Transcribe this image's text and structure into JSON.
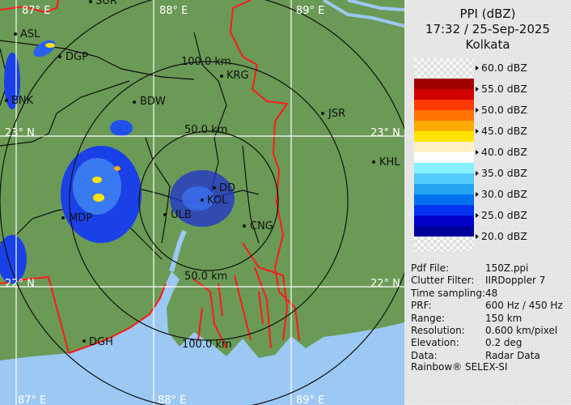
{
  "panel": {
    "title": "PPI (dBZ)",
    "datetime": "17:32 / 25-Sep-2025",
    "location": "Kolkata",
    "legend": [
      {
        "label": "60.0 dBZ"
      },
      {
        "label": "55.0 dBZ"
      },
      {
        "label": "50.0 dBZ"
      },
      {
        "label": "45.0 dBZ"
      },
      {
        "label": "40.0 dBZ"
      },
      {
        "label": "35.0 dBZ"
      },
      {
        "label": "30.0 dBZ"
      },
      {
        "label": "25.0 dBZ"
      },
      {
        "label": "20.0 dBZ"
      }
    ],
    "legend_colors": [
      "#a00000",
      "#d20000",
      "#ff3a00",
      "#ff7400",
      "#ffaa00",
      "#ffe400",
      "#fff0c4",
      "#ffffff",
      "#86f2ff",
      "#52ccff",
      "#22a4f0",
      "#0070f0",
      "#0034f0",
      "#0000c8",
      "#00009c"
    ],
    "info": [
      {
        "key": "Pdf File:",
        "value": "150Z.ppi"
      },
      {
        "key": "Clutter Filter:",
        "value": "IIRDoppler 7"
      },
      {
        "key": "Time sampling:",
        "value": "48"
      },
      {
        "key": "PRF:",
        "value": "600 Hz / 450 Hz"
      },
      {
        "key": "Range:",
        "value": "150 km"
      },
      {
        "key": "Resolution:",
        "value": "0.600 km/pixel"
      },
      {
        "key": "Elevation:",
        "value": "0.2 deg"
      },
      {
        "key": "Data:",
        "value": "Radar Data"
      }
    ],
    "footer": "Rainbow® SELEX-SI"
  },
  "map": {
    "colors": {
      "land": "#6a9a55",
      "sea": "#9cc8f4",
      "border": "#ff1a1a",
      "district": "#111111",
      "grid": "#ffffff"
    },
    "grid_labels": {
      "lon_top": [
        "87° E",
        "88° E",
        "89° E"
      ],
      "lon_bottom": [
        "87° E",
        "88° E",
        "89° E"
      ],
      "lat_left": [
        "23° N",
        "22° N"
      ],
      "lat_right": [
        "23° N",
        "22° N"
      ]
    },
    "range_labels": [
      "50.0 km",
      "100.0 km",
      "50.0 km",
      "100.0 km"
    ],
    "cities": [
      {
        "name": "SUR"
      },
      {
        "name": "ASL"
      },
      {
        "name": "DGP"
      },
      {
        "name": "BNK"
      },
      {
        "name": "BDW"
      },
      {
        "name": "KRG"
      },
      {
        "name": "JSR"
      },
      {
        "name": "KHL"
      },
      {
        "name": "DD"
      },
      {
        "name": "KOL"
      },
      {
        "name": "ULB"
      },
      {
        "name": "CNG"
      },
      {
        "name": "MDP"
      },
      {
        "name": "DGH"
      }
    ]
  }
}
